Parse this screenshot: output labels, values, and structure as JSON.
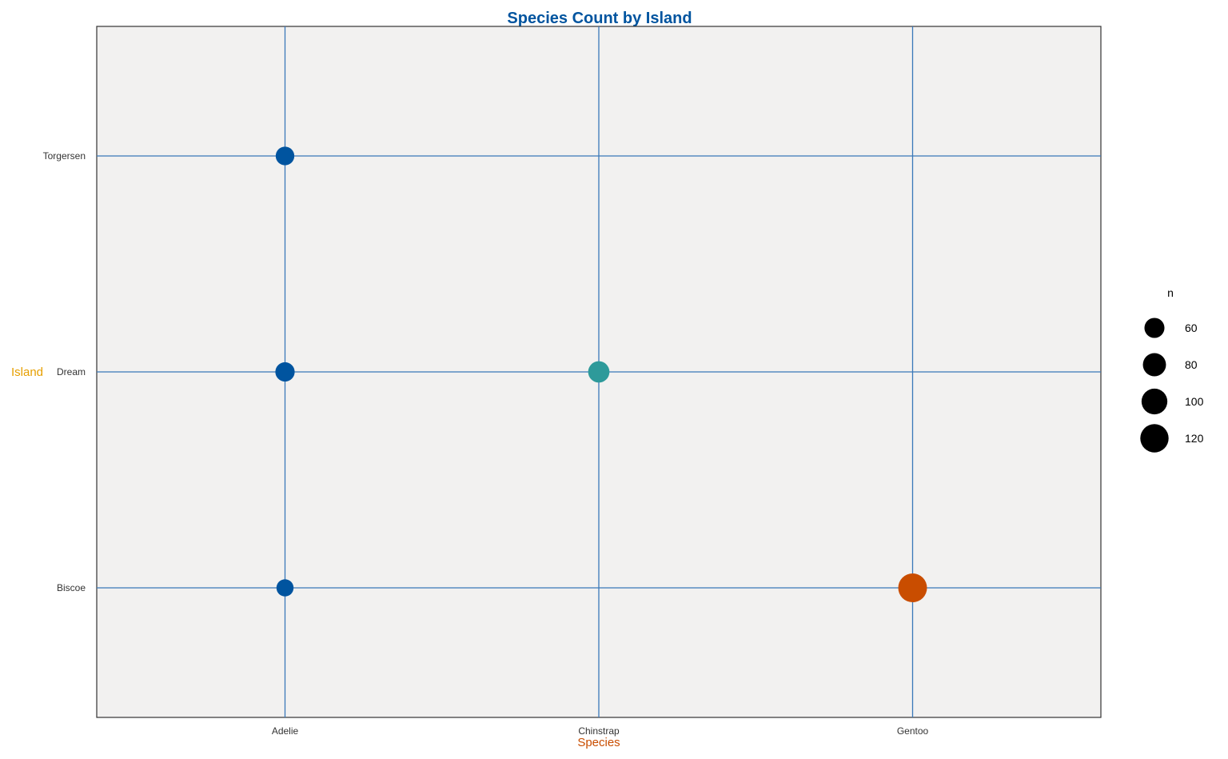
{
  "chart_data": {
    "type": "scatter",
    "title": "Species Count by Island",
    "xlabel": "Species",
    "ylabel": "Island",
    "x_categories": [
      "Adelie",
      "Chinstrap",
      "Gentoo"
    ],
    "y_categories": [
      "Biscoe",
      "Dream",
      "Torgersen"
    ],
    "points": [
      {
        "x": "Adelie",
        "y": "Biscoe",
        "n": 44
      },
      {
        "x": "Adelie",
        "y": "Dream",
        "n": 56
      },
      {
        "x": "Adelie",
        "y": "Torgersen",
        "n": 52
      },
      {
        "x": "Chinstrap",
        "y": "Dream",
        "n": 68
      },
      {
        "x": "Gentoo",
        "y": "Biscoe",
        "n": 124
      }
    ],
    "size_legend": {
      "title": "n",
      "values": [
        60,
        80,
        100,
        120
      ],
      "labels": [
        "60",
        "80",
        "100",
        "120"
      ]
    },
    "legend_position": "right",
    "grid": true,
    "colors": {
      "Adelie": "#00549f",
      "Chinstrap": "#2e9a9a",
      "Gentoo": "#c94d00",
      "grid": "#3a78b8",
      "panel": "#f2f1f0",
      "title": "#00549f",
      "xlabel": "#c94d00",
      "ylabel": "#e69f00"
    }
  }
}
